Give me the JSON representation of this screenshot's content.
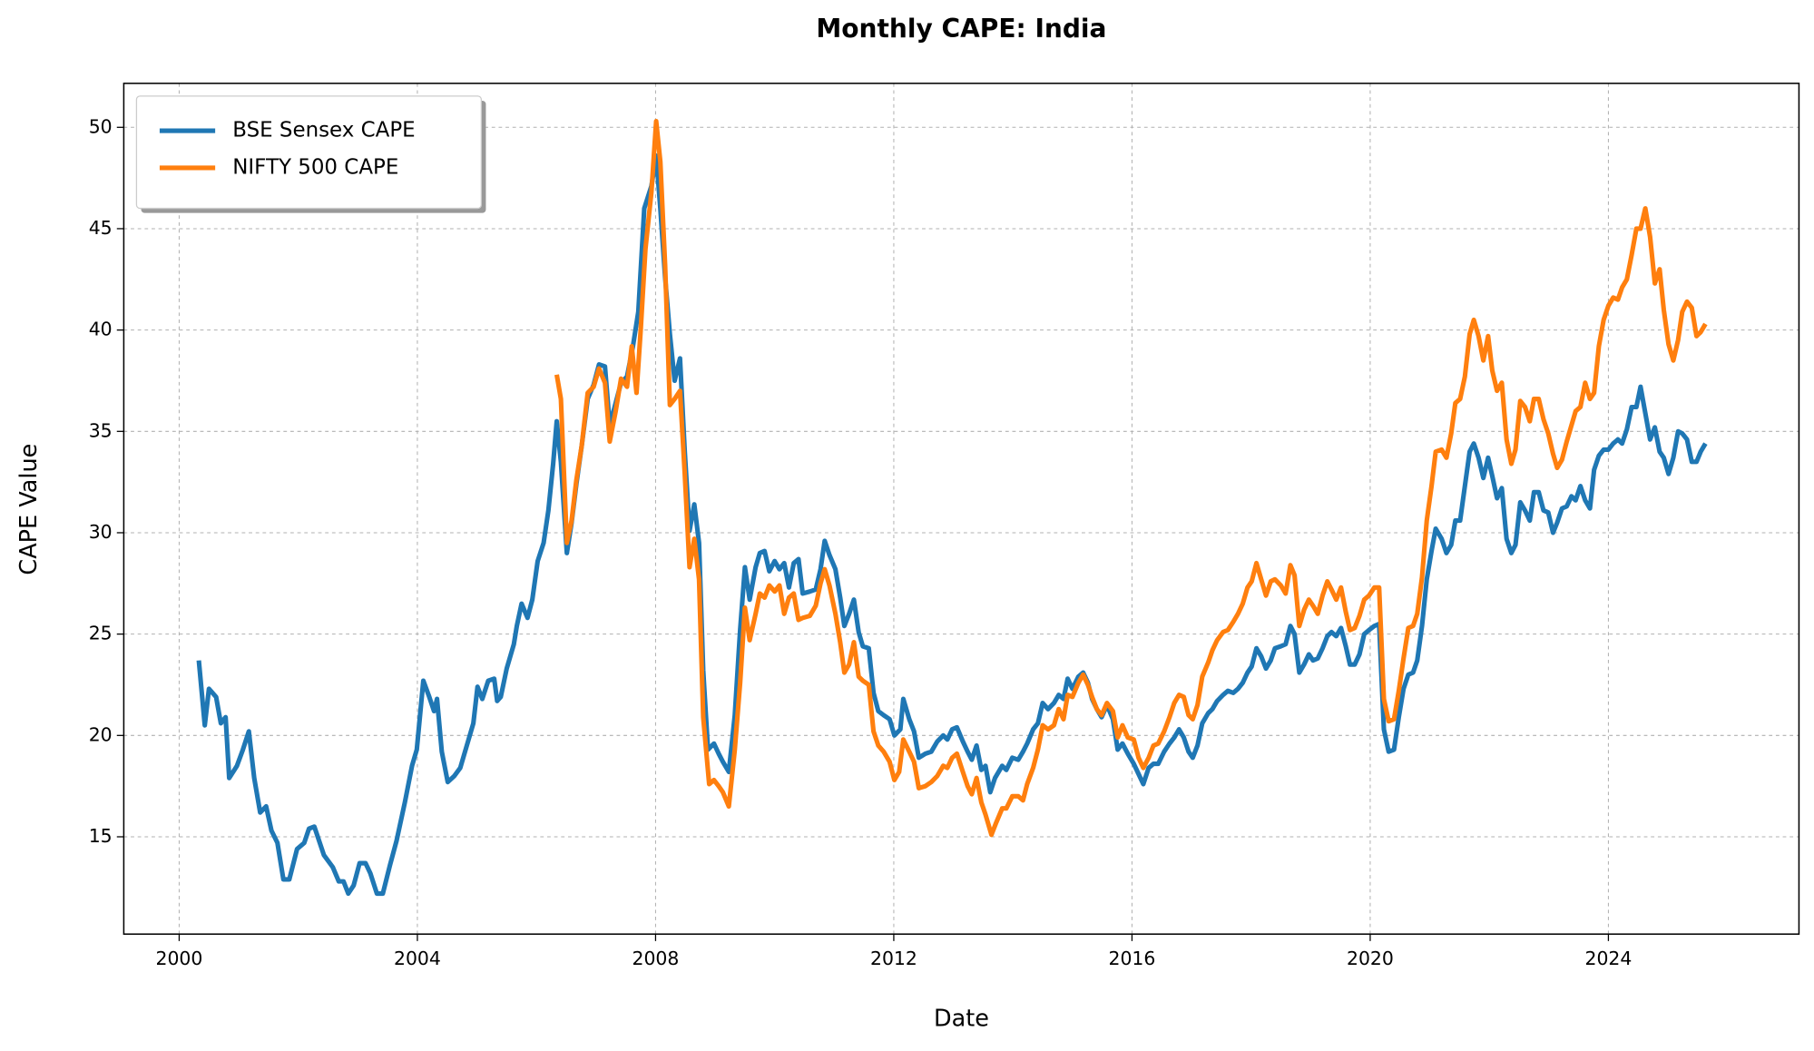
{
  "chart_data": {
    "type": "line",
    "title": "Monthly CAPE: India",
    "xlabel": "Date",
    "ylabel": "CAPE Value",
    "xlim": [
      1999.07,
      2027.2
    ],
    "xticks": [
      2000,
      2004,
      2008,
      2012,
      2016,
      2020,
      2024
    ],
    "ylim": [
      10.2,
      52.17
    ],
    "yticks": [
      15,
      20,
      25,
      30,
      35,
      40,
      45,
      50
    ],
    "grid": true,
    "legend": "upper left",
    "series": [
      {
        "name": "BSE Sensex CAPE",
        "color": "#1f77b4",
        "x": [
          2000.33,
          2000.43,
          2000.5,
          2000.62,
          2000.7,
          2000.78,
          2000.84,
          2000.97,
          2001.07,
          2001.17,
          2001.26,
          2001.36,
          2001.46,
          2001.55,
          2001.65,
          2001.75,
          2001.85,
          2001.98,
          2002.1,
          2002.18,
          2002.27,
          2002.43,
          2002.58,
          2002.68,
          2002.76,
          2002.84,
          2002.93,
          2003.03,
          2003.13,
          2003.21,
          2003.32,
          2003.42,
          2003.54,
          2003.65,
          2003.79,
          2003.91,
          2003.99,
          2004.1,
          2004.2,
          2004.28,
          2004.33,
          2004.41,
          2004.51,
          2004.62,
          2004.72,
          2004.86,
          2004.94,
          2005.01,
          2005.09,
          2005.19,
          2005.29,
          2005.34,
          2005.4,
          2005.5,
          2005.62,
          2005.67,
          2005.75,
          2005.85,
          2005.93,
          2006.02,
          2006.12,
          2006.2,
          2006.28,
          2006.34,
          2006.41,
          2006.51,
          2006.59,
          2006.67,
          2006.76,
          2006.86,
          2006.96,
          2007.05,
          2007.15,
          2007.23,
          2007.33,
          2007.42,
          2007.52,
          2007.62,
          2007.71,
          2007.81,
          2007.93,
          2008.01,
          2008.08,
          2008.16,
          2008.24,
          2008.32,
          2008.41,
          2008.49,
          2008.57,
          2008.65,
          2008.73,
          2008.8,
          2008.88,
          2008.98,
          2009.06,
          2009.13,
          2009.23,
          2009.33,
          2009.42,
          2009.5,
          2009.58,
          2009.68,
          2009.75,
          2009.83,
          2009.91,
          2010.0,
          2010.08,
          2010.16,
          2010.24,
          2010.32,
          2010.4,
          2010.47,
          2010.59,
          2010.69,
          2010.77,
          2010.84,
          2010.92,
          2011.02,
          2011.1,
          2011.17,
          2011.25,
          2011.33,
          2011.41,
          2011.48,
          2011.58,
          2011.66,
          2011.74,
          2011.83,
          2011.93,
          2012.01,
          2012.11,
          2012.16,
          2012.26,
          2012.34,
          2012.42,
          2012.53,
          2012.63,
          2012.73,
          2012.83,
          2012.9,
          2012.98,
          2013.06,
          2013.16,
          2013.24,
          2013.31,
          2013.39,
          2013.47,
          2013.54,
          2013.62,
          2013.7,
          2013.82,
          2013.89,
          2013.99,
          2014.09,
          2014.17,
          2014.24,
          2014.34,
          2014.42,
          2014.5,
          2014.59,
          2014.69,
          2014.77,
          2014.85,
          2014.92,
          2015.0,
          2015.1,
          2015.18,
          2015.26,
          2015.33,
          2015.41,
          2015.49,
          2015.58,
          2015.68,
          2015.76,
          2015.84,
          2015.93,
          2016.03,
          2016.11,
          2016.19,
          2016.28,
          2016.36,
          2016.44,
          2016.54,
          2016.63,
          2016.71,
          2016.79,
          2016.87,
          2016.95,
          2017.02,
          2017.1,
          2017.18,
          2017.28,
          2017.35,
          2017.43,
          2017.53,
          2017.61,
          2017.7,
          2017.78,
          2017.86,
          2017.94,
          2018.01,
          2018.09,
          2018.17,
          2018.25,
          2018.33,
          2018.4,
          2018.5,
          2018.58,
          2018.66,
          2018.73,
          2018.81,
          2018.89,
          2018.97,
          2019.04,
          2019.12,
          2019.2,
          2019.28,
          2019.35,
          2019.43,
          2019.51,
          2019.59,
          2019.66,
          2019.74,
          2019.82,
          2019.9,
          2019.98,
          2020.07,
          2020.15,
          2020.23,
          2020.31,
          2020.4,
          2020.48,
          2020.56,
          2020.64,
          2020.72,
          2020.79,
          2020.87,
          2020.95,
          2021.03,
          2021.1,
          2021.2,
          2021.28,
          2021.36,
          2021.43,
          2021.51,
          2021.59,
          2021.67,
          2021.74,
          2021.82,
          2021.9,
          2021.98,
          2022.05,
          2022.13,
          2022.21,
          2022.29,
          2022.37,
          2022.44,
          2022.52,
          2022.6,
          2022.68,
          2022.75,
          2022.83,
          2022.91,
          2022.99,
          2023.07,
          2023.14,
          2023.22,
          2023.3,
          2023.38,
          2023.45,
          2023.53,
          2023.61,
          2023.69,
          2023.76,
          2023.84,
          2023.92,
          2024.0,
          2024.08,
          2024.16,
          2024.23,
          2024.31,
          2024.39,
          2024.47,
          2024.54,
          2024.62,
          2024.7,
          2024.78,
          2024.86,
          2024.93,
          2025.01,
          2025.09,
          2025.17,
          2025.24,
          2025.32,
          2025.4,
          2025.48,
          2025.55,
          2025.63
        ],
        "values": [
          23.7,
          20.5,
          22.3,
          21.9,
          20.6,
          20.9,
          17.9,
          18.5,
          19.3,
          20.2,
          17.9,
          16.2,
          16.5,
          15.3,
          14.7,
          12.9,
          12.9,
          14.4,
          14.7,
          15.4,
          15.5,
          14.1,
          13.5,
          12.8,
          12.8,
          12.2,
          12.6,
          13.7,
          13.7,
          13.2,
          12.2,
          12.2,
          13.6,
          14.8,
          16.7,
          18.5,
          19.3,
          22.7,
          21.9,
          21.2,
          21.8,
          19.2,
          17.7,
          18.0,
          18.4,
          19.8,
          20.6,
          22.4,
          21.8,
          22.7,
          22.8,
          21.7,
          21.9,
          23.3,
          24.5,
          25.4,
          26.5,
          25.8,
          26.7,
          28.6,
          29.5,
          31.1,
          33.4,
          35.5,
          33.5,
          29.0,
          30.5,
          32.4,
          34.3,
          36.6,
          37.3,
          38.3,
          38.2,
          35.3,
          36.4,
          37.4,
          37.7,
          39.2,
          40.9,
          46.0,
          47.1,
          48.6,
          46.0,
          42.6,
          39.8,
          37.5,
          38.6,
          34.0,
          30.1,
          31.4,
          29.5,
          23.2,
          19.3,
          19.6,
          19.1,
          18.7,
          18.2,
          21.0,
          25.2,
          28.3,
          26.7,
          28.3,
          29.0,
          29.1,
          28.1,
          28.6,
          28.2,
          28.5,
          27.3,
          28.5,
          28.7,
          27.0,
          27.1,
          27.2,
          28.2,
          29.6,
          28.9,
          28.2,
          26.8,
          25.4,
          26.0,
          26.7,
          25.1,
          24.4,
          24.3,
          22.1,
          21.2,
          21.0,
          20.8,
          20.0,
          20.3,
          21.8,
          20.8,
          20.2,
          18.9,
          19.1,
          19.2,
          19.7,
          20.0,
          19.8,
          20.3,
          20.4,
          19.7,
          19.2,
          18.8,
          19.5,
          18.3,
          18.5,
          17.2,
          17.9,
          18.5,
          18.3,
          18.9,
          18.8,
          19.2,
          19.6,
          20.3,
          20.6,
          21.6,
          21.3,
          21.6,
          22.0,
          21.8,
          22.8,
          22.3,
          22.9,
          23.1,
          22.6,
          21.8,
          21.3,
          20.9,
          21.5,
          20.8,
          19.3,
          19.6,
          19.1,
          18.6,
          18.1,
          17.6,
          18.4,
          18.6,
          18.6,
          19.2,
          19.6,
          19.9,
          20.3,
          19.9,
          19.2,
          18.9,
          19.5,
          20.6,
          21.1,
          21.3,
          21.7,
          22.0,
          22.2,
          22.1,
          22.3,
          22.6,
          23.1,
          23.4,
          24.3,
          23.9,
          23.3,
          23.7,
          24.3,
          24.4,
          24.5,
          25.4,
          25.0,
          23.1,
          23.5,
          24.0,
          23.7,
          23.8,
          24.3,
          24.9,
          25.1,
          24.9,
          25.3,
          24.4,
          23.5,
          23.5,
          24.0,
          25.0,
          25.2,
          25.4,
          25.5,
          20.3,
          19.2,
          19.3,
          20.9,
          22.3,
          23.0,
          23.1,
          23.7,
          25.4,
          27.7,
          29.1,
          30.2,
          29.7,
          29.0,
          29.4,
          30.6,
          30.6,
          32.3,
          34.0,
          34.4,
          33.7,
          32.7,
          33.7,
          32.8,
          31.7,
          32.2,
          29.7,
          29.0,
          29.4,
          31.5,
          31.1,
          30.6,
          32.0,
          32.0,
          31.1,
          31.0,
          30.0,
          30.5,
          31.2,
          31.3,
          31.8,
          31.6,
          32.3,
          31.6,
          31.2,
          33.1,
          33.8,
          34.1,
          34.1,
          34.4,
          34.6,
          34.4,
          35.1,
          36.2,
          36.2,
          37.2,
          35.9,
          34.6,
          35.2,
          34.0,
          33.7,
          32.9,
          33.7,
          35.0,
          34.9,
          34.6,
          33.5,
          33.5,
          34.0,
          34.4
        ]
      },
      {
        "name": "NIFTY 500 CAPE",
        "color": "#ff7f0e",
        "x": [
          2006.34,
          2006.41,
          2006.51,
          2006.59,
          2006.67,
          2006.76,
          2006.86,
          2006.96,
          2007.05,
          2007.15,
          2007.23,
          2007.33,
          2007.42,
          2007.52,
          2007.6,
          2007.68,
          2007.75,
          2007.83,
          2007.93,
          2008.01,
          2008.08,
          2008.16,
          2008.24,
          2008.32,
          2008.41,
          2008.49,
          2008.57,
          2008.65,
          2008.73,
          2008.8,
          2008.9,
          2008.98,
          2009.06,
          2009.13,
          2009.23,
          2009.33,
          2009.42,
          2009.5,
          2009.58,
          2009.68,
          2009.75,
          2009.83,
          2009.91,
          2010.0,
          2010.08,
          2010.16,
          2010.24,
          2010.32,
          2010.4,
          2010.47,
          2010.59,
          2010.69,
          2010.77,
          2010.84,
          2010.92,
          2011.02,
          2011.1,
          2011.17,
          2011.25,
          2011.33,
          2011.41,
          2011.48,
          2011.58,
          2011.66,
          2011.74,
          2011.83,
          2011.93,
          2012.01,
          2012.09,
          2012.16,
          2012.26,
          2012.34,
          2012.42,
          2012.53,
          2012.63,
          2012.73,
          2012.83,
          2012.9,
          2012.98,
          2013.06,
          2013.16,
          2013.24,
          2013.31,
          2013.39,
          2013.47,
          2013.54,
          2013.64,
          2013.72,
          2013.82,
          2013.89,
          2013.99,
          2014.09,
          2014.17,
          2014.24,
          2014.34,
          2014.42,
          2014.5,
          2014.59,
          2014.69,
          2014.77,
          2014.85,
          2014.92,
          2015.0,
          2015.1,
          2015.18,
          2015.26,
          2015.33,
          2015.41,
          2015.49,
          2015.58,
          2015.68,
          2015.76,
          2015.84,
          2015.93,
          2016.03,
          2016.11,
          2016.19,
          2016.28,
          2016.36,
          2016.44,
          2016.54,
          2016.63,
          2016.71,
          2016.79,
          2016.87,
          2016.95,
          2017.02,
          2017.1,
          2017.18,
          2017.28,
          2017.35,
          2017.43,
          2017.53,
          2017.61,
          2017.7,
          2017.78,
          2017.86,
          2017.94,
          2018.01,
          2018.09,
          2018.17,
          2018.25,
          2018.33,
          2018.4,
          2018.5,
          2018.58,
          2018.66,
          2018.73,
          2018.81,
          2018.89,
          2018.97,
          2019.04,
          2019.12,
          2019.2,
          2019.28,
          2019.35,
          2019.43,
          2019.51,
          2019.59,
          2019.66,
          2019.74,
          2019.82,
          2019.9,
          2019.98,
          2020.07,
          2020.15,
          2020.23,
          2020.31,
          2020.4,
          2020.48,
          2020.56,
          2020.64,
          2020.72,
          2020.79,
          2020.87,
          2020.95,
          2021.03,
          2021.1,
          2021.2,
          2021.28,
          2021.36,
          2021.43,
          2021.51,
          2021.59,
          2021.67,
          2021.74,
          2021.82,
          2021.9,
          2021.98,
          2022.05,
          2022.13,
          2022.21,
          2022.29,
          2022.37,
          2022.44,
          2022.52,
          2022.6,
          2022.68,
          2022.75,
          2022.83,
          2022.91,
          2022.99,
          2023.07,
          2023.14,
          2023.22,
          2023.3,
          2023.38,
          2023.45,
          2023.53,
          2023.61,
          2023.69,
          2023.76,
          2023.84,
          2023.92,
          2024.0,
          2024.08,
          2024.16,
          2024.23,
          2024.31,
          2024.39,
          2024.47,
          2024.54,
          2024.62,
          2024.7,
          2024.78,
          2024.86,
          2024.93,
          2025.01,
          2025.09,
          2025.17,
          2025.24,
          2025.32,
          2025.4,
          2025.48,
          2025.55,
          2025.63
        ],
        "values": [
          37.8,
          36.6,
          29.5,
          30.6,
          32.6,
          34.3,
          36.9,
          37.2,
          38.1,
          37.4,
          34.5,
          36.0,
          37.6,
          37.2,
          39.2,
          36.9,
          40.0,
          44.0,
          46.8,
          50.3,
          48.3,
          43.2,
          36.3,
          36.6,
          37.0,
          32.9,
          28.3,
          29.7,
          27.7,
          20.9,
          17.6,
          17.8,
          17.5,
          17.2,
          16.5,
          19.3,
          22.6,
          26.3,
          24.7,
          26.0,
          27.0,
          26.8,
          27.4,
          27.1,
          27.4,
          26.0,
          26.8,
          27.0,
          25.7,
          25.8,
          25.9,
          26.4,
          27.5,
          28.2,
          27.4,
          26.0,
          24.6,
          23.1,
          23.5,
          24.6,
          22.9,
          22.7,
          22.5,
          20.2,
          19.5,
          19.2,
          18.7,
          17.8,
          18.2,
          19.8,
          19.2,
          18.7,
          17.4,
          17.5,
          17.7,
          18.0,
          18.5,
          18.4,
          18.9,
          19.1,
          18.2,
          17.5,
          17.1,
          17.9,
          16.7,
          16.1,
          15.1,
          15.7,
          16.4,
          16.4,
          17.0,
          17.0,
          16.8,
          17.6,
          18.4,
          19.3,
          20.5,
          20.3,
          20.5,
          21.3,
          20.8,
          22.0,
          21.9,
          22.6,
          23.0,
          22.5,
          21.9,
          21.3,
          21.0,
          21.6,
          21.2,
          19.9,
          20.5,
          19.9,
          19.8,
          18.9,
          18.4,
          18.9,
          19.5,
          19.6,
          20.2,
          20.9,
          21.6,
          22.0,
          21.9,
          21.0,
          20.8,
          21.5,
          22.9,
          23.6,
          24.2,
          24.7,
          25.1,
          25.2,
          25.6,
          26.0,
          26.5,
          27.3,
          27.6,
          28.5,
          27.7,
          26.9,
          27.6,
          27.7,
          27.4,
          27.0,
          28.4,
          27.9,
          25.4,
          26.2,
          26.7,
          26.4,
          26.0,
          26.9,
          27.6,
          27.2,
          26.7,
          27.3,
          26.1,
          25.2,
          25.3,
          25.9,
          26.7,
          26.9,
          27.3,
          27.3,
          21.8,
          20.7,
          20.8,
          22.2,
          23.8,
          25.3,
          25.4,
          26.0,
          27.8,
          30.6,
          32.3,
          34.0,
          34.1,
          33.7,
          34.9,
          36.4,
          36.6,
          37.7,
          39.8,
          40.5,
          39.7,
          38.5,
          39.7,
          38.0,
          37.0,
          37.4,
          34.6,
          33.4,
          34.1,
          36.5,
          36.2,
          35.5,
          36.6,
          36.6,
          35.6,
          34.9,
          33.9,
          33.2,
          33.6,
          34.5,
          35.3,
          36.0,
          36.2,
          37.4,
          36.6,
          36.9,
          39.2,
          40.5,
          41.2,
          41.6,
          41.5,
          42.1,
          42.5,
          43.7,
          45.0,
          45.0,
          46.0,
          44.6,
          42.3,
          43.0,
          41.0,
          39.3,
          38.5,
          39.5,
          40.9,
          41.4,
          41.1,
          39.7,
          39.9,
          40.3
        ]
      }
    ]
  }
}
